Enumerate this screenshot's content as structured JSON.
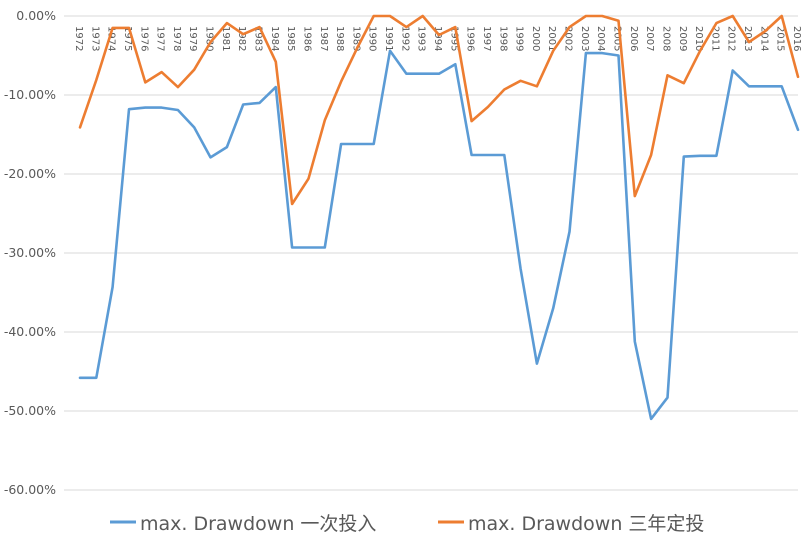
{
  "chart_data": {
    "type": "line",
    "title": "",
    "xlabel": "",
    "ylabel": "",
    "ylim": [
      -0.6,
      0.0
    ],
    "y_ticks": [
      "0.00%",
      "-10.00%",
      "-20.00%",
      "-30.00%",
      "-40.00%",
      "-50.00%",
      "-60.00%"
    ],
    "y_tick_values": [
      0,
      -0.1,
      -0.2,
      -0.3,
      -0.4,
      -0.5,
      -0.6
    ],
    "grid": true,
    "legend_position": "bottom",
    "x": [
      1972,
      1973,
      1974,
      1975,
      1976,
      1977,
      1978,
      1979,
      1980,
      1981,
      1982,
      1983,
      1984,
      1985,
      1986,
      1987,
      1988,
      1989,
      1990,
      1991,
      1992,
      1993,
      1994,
      1995,
      1996,
      1997,
      1998,
      1999,
      2000,
      2001,
      2002,
      2003,
      2004,
      2005,
      2006,
      2007,
      2008,
      2009,
      2010,
      2011,
      2012,
      2013,
      2014,
      2015,
      2016
    ],
    "x_labels": [
      "1972",
      "1973",
      "1974",
      "1975",
      "1976",
      "1977",
      "1978",
      "1979",
      "1980",
      "1981",
      "1982",
      "1983",
      "1984",
      "1985",
      "1986",
      "1987",
      "1988",
      "1989",
      "1990",
      "1991",
      "1992",
      "1993",
      "1994",
      "1995",
      "1996",
      "1997",
      "1998",
      "1999",
      "2000",
      "2001",
      "2002",
      "2003",
      "2004",
      "2005",
      "2006",
      "2007",
      "2008",
      "2009",
      "2010",
      "2011",
      "2012",
      "2013",
      "2014",
      "2015",
      "2016"
    ],
    "series": [
      {
        "name": "max. Drawdown 一次投入",
        "color": "#5B9BD5",
        "values": [
          -0.458,
          -0.458,
          -0.343,
          -0.118,
          -0.116,
          -0.116,
          -0.119,
          -0.141,
          -0.179,
          -0.166,
          -0.112,
          -0.11,
          -0.09,
          -0.293,
          -0.293,
          -0.293,
          -0.162,
          -0.162,
          -0.162,
          -0.044,
          -0.073,
          -0.073,
          -0.073,
          -0.061,
          -0.176,
          -0.176,
          -0.176,
          -0.32,
          -0.44,
          -0.37,
          -0.273,
          -0.047,
          -0.047,
          -0.05,
          -0.412,
          -0.51,
          -0.483,
          -0.178,
          -0.177,
          -0.177,
          -0.069,
          -0.089,
          -0.089,
          -0.089,
          -0.144
        ]
      },
      {
        "name": "max. Drawdown 三年定投",
        "color": "#ED7D31",
        "values": [
          -0.141,
          -0.081,
          -0.015,
          -0.015,
          -0.084,
          -0.071,
          -0.09,
          -0.068,
          -0.033,
          -0.009,
          -0.023,
          -0.014,
          -0.058,
          -0.238,
          -0.206,
          -0.132,
          -0.083,
          -0.04,
          0.0,
          0.0,
          -0.014,
          0.0,
          -0.024,
          -0.014,
          -0.133,
          -0.115,
          -0.093,
          -0.082,
          -0.089,
          -0.044,
          -0.014,
          0.0,
          0.0,
          -0.006,
          -0.228,
          -0.176,
          -0.075,
          -0.085,
          -0.044,
          -0.009,
          0.0,
          -0.033,
          -0.019,
          0.0,
          -0.077
        ]
      }
    ]
  }
}
